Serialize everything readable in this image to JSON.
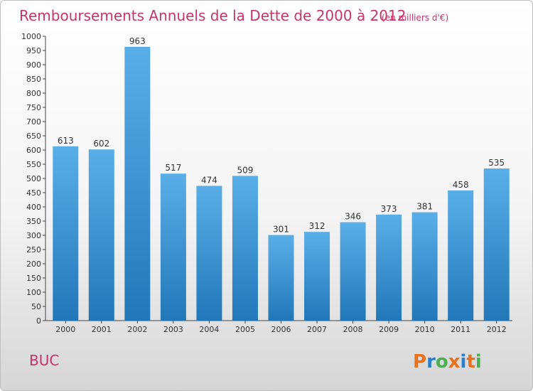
{
  "title": "Remboursements Annuels de la Dette de 2000 à 2012",
  "unit": "(en milliers d'€)",
  "place": "BUC",
  "logo": {
    "text": "Proxiti",
    "colors": [
      "#e8711c",
      "#2a7fc9",
      "#4caf50",
      "#e8711c",
      "#2a7fc9",
      "#e8711c",
      "#4caf50"
    ]
  },
  "colors": {
    "bar_light": "#5aaee8",
    "bar_dark": "#2277b8",
    "title": "#c8336a"
  },
  "chart_data": {
    "type": "bar",
    "title": "Remboursements Annuels de la Dette de 2000 à 2012",
    "subtitle": "(en milliers d'€)",
    "xlabel": "",
    "ylabel": "",
    "categories": [
      "2000",
      "2001",
      "2002",
      "2003",
      "2004",
      "2005",
      "2006",
      "2007",
      "2008",
      "2009",
      "2010",
      "2011",
      "2012"
    ],
    "values": [
      613,
      602,
      963,
      517,
      474,
      509,
      301,
      312,
      346,
      373,
      381,
      458,
      535
    ],
    "ylim": [
      0,
      1000
    ],
    "ytick_step": 50,
    "grid": false
  }
}
